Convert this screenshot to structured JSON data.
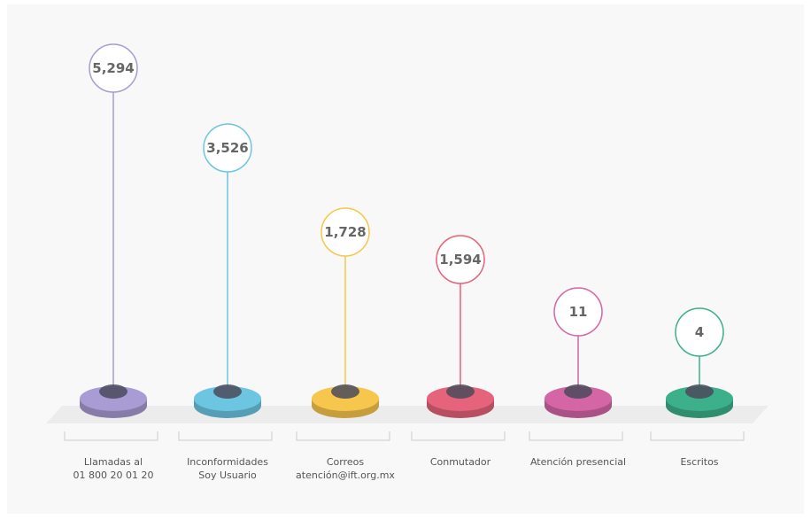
{
  "items": [
    {
      "value": "5,294",
      "label": "Llamadas al\n01 800 20 01 20",
      "color": "#a99bd3"
    },
    {
      "value": "3,526",
      "label": "Inconformidades\nSoy Usuario",
      "color": "#6cc6e2"
    },
    {
      "value": "1,728",
      "label": "Correos\natención@ift.org.mx",
      "color": "#f7c64c"
    },
    {
      "value": "1,594",
      "label": "Conmutador",
      "color": "#e5637b"
    },
    {
      "value": "11",
      "label": "Atención presencial",
      "color": "#d466a6"
    },
    {
      "value": "4",
      "label": "Escritos",
      "color": "#3cb08a"
    }
  ]
}
